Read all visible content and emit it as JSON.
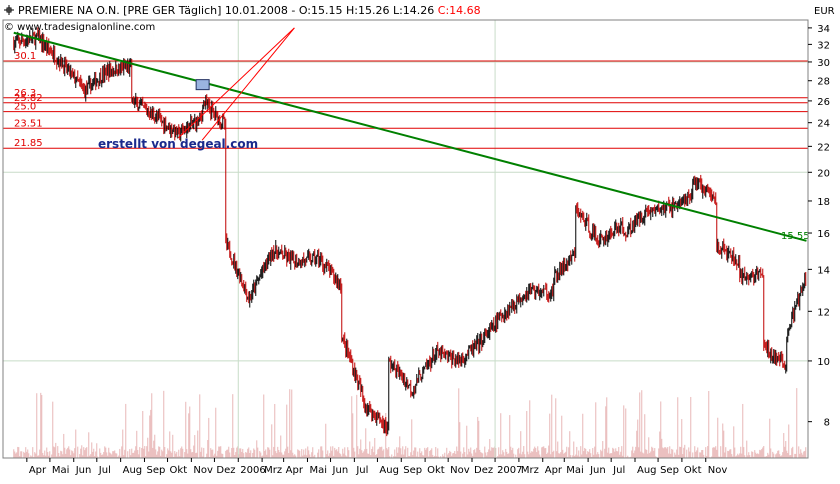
{
  "header": {
    "symbol_icon": "crosshair-icon",
    "title_text": "PREMIERE NA O.N. [PRE GER  Täglich] 10.01.2008 - O:15.15 H:15.26 L:14.26 ",
    "close_text": "C:14.68",
    "close_color": "#ff0000",
    "copyright": "© www.tradesignalonline.com",
    "currency": "EUR"
  },
  "watermark": "erstellt von degeal.com",
  "colors": {
    "trendline": "#008000",
    "level_lines": "#e00000",
    "level_labels": "#e00000",
    "channel_lines": "#ff0000",
    "candle_up": "#000000",
    "candle_down": "#c00000",
    "volume": "#e8b8b8",
    "grid": "#c8dcc8",
    "watermark": "#1a2a8c"
  },
  "chart_data": {
    "type": "candlestick",
    "period": "daily",
    "yaxis": {
      "ticks": [
        8,
        10,
        12,
        14,
        16,
        18,
        20,
        22,
        24,
        26,
        28,
        30,
        32,
        34
      ],
      "scale": "log",
      "range": [
        7,
        35
      ]
    },
    "xaxis": {
      "labels": [
        "Apr",
        "Mai",
        "Jun",
        "Jul",
        "Aug",
        "Sep",
        "Okt",
        "Nov",
        "Dez",
        "2006",
        "Mrz",
        "Apr",
        "Mai",
        "Jun",
        "Jul",
        "Aug",
        "Sep",
        "Okt",
        "Nov",
        "Dez",
        "2007",
        "Mrz",
        "Apr",
        "Mai",
        "Jun",
        "Jul",
        "Aug",
        "Sep",
        "Okt",
        "Nov"
      ]
    },
    "horizontal_levels": [
      {
        "value": 30.1,
        "label": "30.1"
      },
      {
        "value": 26.3,
        "label": "26.3"
      },
      {
        "value": 25.82,
        "label": "25.82"
      },
      {
        "value": 25.0,
        "label": "25.0"
      },
      {
        "value": 23.51,
        "label": "23.51"
      },
      {
        "value": 21.85,
        "label": "21.85"
      }
    ],
    "trendline": {
      "start": {
        "date": "2005-03",
        "value": 33.4
      },
      "end": {
        "date": "2008-01-10",
        "value": 15.55
      },
      "label": "15.55"
    },
    "channel_lines": [
      {
        "start": {
          "date": "2005-10",
          "value": 22.7
        },
        "end": {
          "date": "2006-03",
          "value": 34
        }
      },
      {
        "start": {
          "date": "2005-11",
          "value": 22.5
        },
        "end": {
          "date": "2006-03",
          "value": 34
        }
      }
    ],
    "marker_box": {
      "date": "2005-11",
      "value": 27.6
    },
    "monthly_path": [
      [
        "2005-03",
        32.2
      ],
      [
        "2005-04",
        32.8
      ],
      [
        "2005-05",
        30.0
      ],
      [
        "2005-06",
        27.0
      ],
      [
        "2005-07",
        29.0
      ],
      [
        "2005-08",
        29.5
      ],
      [
        "2005-08",
        26.0
      ],
      [
        "2005-09",
        24.6
      ],
      [
        "2005-10",
        23.0
      ],
      [
        "2005-11",
        24.5
      ],
      [
        "2005-11",
        26.0
      ],
      [
        "2005-12",
        23.8
      ],
      [
        "2005-12",
        15.5
      ],
      [
        "2006-01",
        12.5
      ],
      [
        "2006-02",
        15.0
      ],
      [
        "2006-03",
        14.4
      ],
      [
        "2006-04",
        14.6
      ],
      [
        "2006-05",
        13.2
      ],
      [
        "2006-05",
        11.0
      ],
      [
        "2006-06",
        8.5
      ],
      [
        "2006-07",
        7.8
      ],
      [
        "2006-07",
        10.0
      ],
      [
        "2006-08",
        9.0
      ],
      [
        "2006-09",
        10.3
      ],
      [
        "2006-10",
        10.0
      ],
      [
        "2006-11",
        10.8
      ],
      [
        "2006-12",
        12.0
      ],
      [
        "2007-01",
        13.0
      ],
      [
        "2007-02",
        12.8
      ],
      [
        "2007-02",
        13.5
      ],
      [
        "2007-03",
        14.8
      ],
      [
        "2007-03",
        17.5
      ],
      [
        "2007-04",
        15.5
      ],
      [
        "2007-05",
        16.5
      ],
      [
        "2007-05",
        15.8
      ],
      [
        "2007-06",
        17.3
      ],
      [
        "2007-07",
        17.6
      ],
      [
        "2007-08",
        18.2
      ],
      [
        "2007-08",
        19.5
      ],
      [
        "2007-09",
        18.0
      ],
      [
        "2007-09",
        15.3
      ],
      [
        "2007-10",
        14.3
      ],
      [
        "2007-10",
        16.2
      ],
      [
        "2007-10",
        13.5
      ],
      [
        "2007-11",
        13.8
      ],
      [
        "2007-11",
        10.5
      ],
      [
        "2007-12",
        9.8
      ],
      [
        "2007-12",
        11.0
      ],
      [
        "2008-01",
        14.0
      ],
      [
        "2008-01-10",
        14.68
      ]
    ]
  }
}
